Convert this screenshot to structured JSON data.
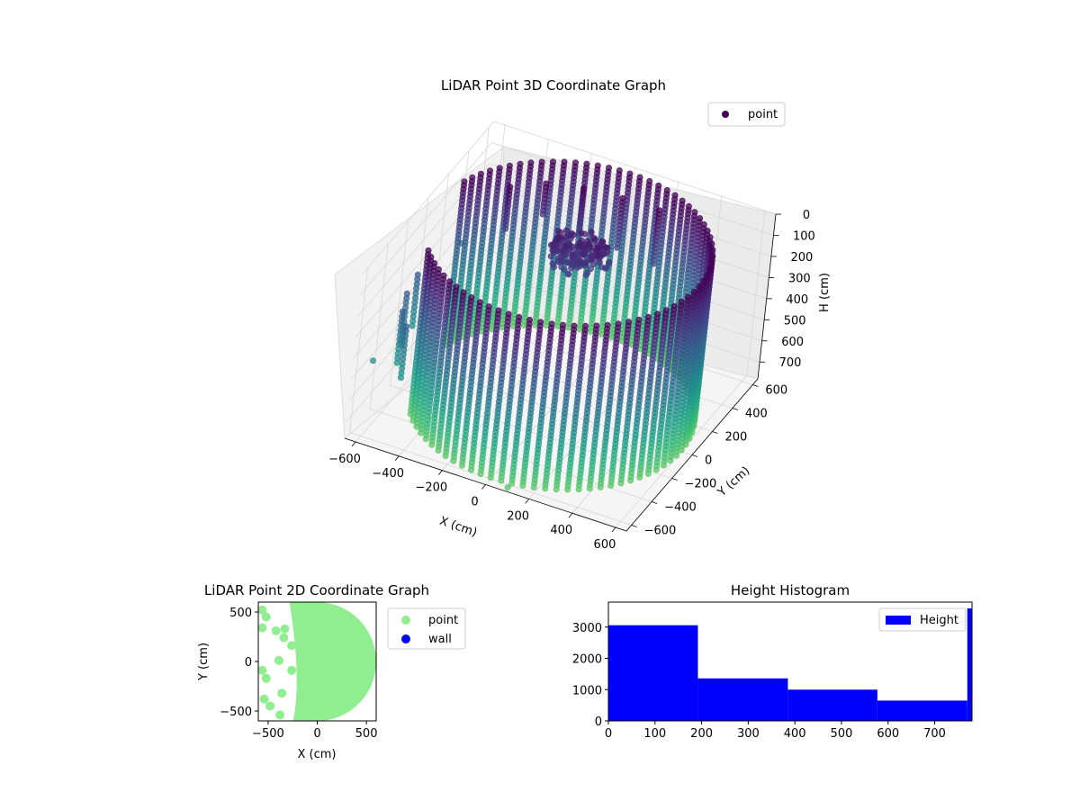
{
  "chart_data": [
    {
      "type": "scatter",
      "projection": "3d",
      "title": "LiDAR Point 3D Coordinate Graph",
      "xlabel": "X (cm)",
      "ylabel": "Y (cm)",
      "zlabel": "H (cm)",
      "xlim": [
        -650,
        650
      ],
      "ylim": [
        -650,
        650
      ],
      "zlim": [
        780,
        0
      ],
      "z_inverted": true,
      "xticks": [
        -600,
        -400,
        -200,
        0,
        200,
        400,
        600
      ],
      "yticks": [
        -600,
        -400,
        -200,
        0,
        200,
        400,
        600
      ],
      "zticks": [
        0,
        100,
        200,
        300,
        400,
        500,
        600,
        700
      ],
      "colormap": "viridis (by height)",
      "grid": true,
      "legend": {
        "position": "top-right",
        "entries": [
          {
            "name": "point",
            "color": "#440154"
          }
        ]
      },
      "description_of_data": {
        "cylinder_wall": {
          "center_x": 0,
          "center_y": 0,
          "radius": 600,
          "h_range": [
            0,
            780
          ]
        },
        "inner_posts": [
          {
            "x": -390,
            "y": 250,
            "h_range": [
              0,
              200
            ]
          },
          {
            "x": -270,
            "y": 350,
            "h_range": [
              0,
              160
            ]
          },
          {
            "x": -120,
            "y": 400,
            "h_range": [
              0,
              220
            ]
          },
          {
            "x": 50,
            "y": 420,
            "h_range": [
              0,
              240
            ]
          },
          {
            "x": 220,
            "y": 420,
            "h_range": [
              0,
              260
            ]
          }
        ],
        "cluster": {
          "x": -20,
          "y": 180,
          "h_range": [
            80,
            220
          ]
        },
        "outliers": [
          {
            "x": -640,
            "y": -450,
            "h": 520
          },
          {
            "x": -630,
            "y": 380,
            "h": 420
          },
          {
            "x": 100,
            "y": -650,
            "h": 760
          }
        ]
      }
    },
    {
      "type": "scatter",
      "title": "LiDAR Point 2D Coordinate Graph",
      "xlabel": "X (cm)",
      "ylabel": "Y (cm)",
      "xlim": [
        -600,
        600
      ],
      "ylim": [
        -600,
        600
      ],
      "xticks": [
        -500,
        0,
        500
      ],
      "yticks": [
        -500,
        0,
        500
      ],
      "legend": {
        "position": "outside-right",
        "entries": [
          {
            "name": "point",
            "color": "#90ee90"
          },
          {
            "name": "wall",
            "color": "#0000ff"
          }
        ]
      },
      "point_color": "#90ee90",
      "filled_region": {
        "center_x": 0,
        "center_y": 0,
        "radius": 600,
        "clipped_x_min": -210
      },
      "blobs": [
        [
          -560,
          520
        ],
        [
          -520,
          450
        ],
        [
          -560,
          340
        ],
        [
          -420,
          310
        ],
        [
          -330,
          330
        ],
        [
          -340,
          240
        ],
        [
          -260,
          160
        ],
        [
          -390,
          10
        ],
        [
          -560,
          -90
        ],
        [
          -520,
          -170
        ],
        [
          -260,
          -90
        ],
        [
          -360,
          -320
        ],
        [
          -540,
          -380
        ],
        [
          -480,
          -450
        ],
        [
          -380,
          -540
        ]
      ]
    },
    {
      "type": "bar",
      "title": "Height Histogram",
      "xlim": [
        0,
        780
      ],
      "ylim": [
        0,
        3800
      ],
      "xticks": [
        0,
        100,
        200,
        300,
        400,
        500,
        600,
        700
      ],
      "yticks": [
        0,
        1000,
        2000,
        3000
      ],
      "bar_color": "#0000ff",
      "legend": {
        "position": "top-right",
        "entries": [
          {
            "name": "Height",
            "color": "#0000ff"
          }
        ]
      },
      "bins": [
        {
          "x0": 0,
          "x1": 192,
          "count": 3060
        },
        {
          "x0": 192,
          "x1": 385,
          "count": 1360
        },
        {
          "x0": 385,
          "x1": 577,
          "count": 1000
        },
        {
          "x0": 577,
          "x1": 770,
          "count": 650
        },
        {
          "x0": 770,
          "x1": 780,
          "count": 3600
        }
      ]
    }
  ]
}
